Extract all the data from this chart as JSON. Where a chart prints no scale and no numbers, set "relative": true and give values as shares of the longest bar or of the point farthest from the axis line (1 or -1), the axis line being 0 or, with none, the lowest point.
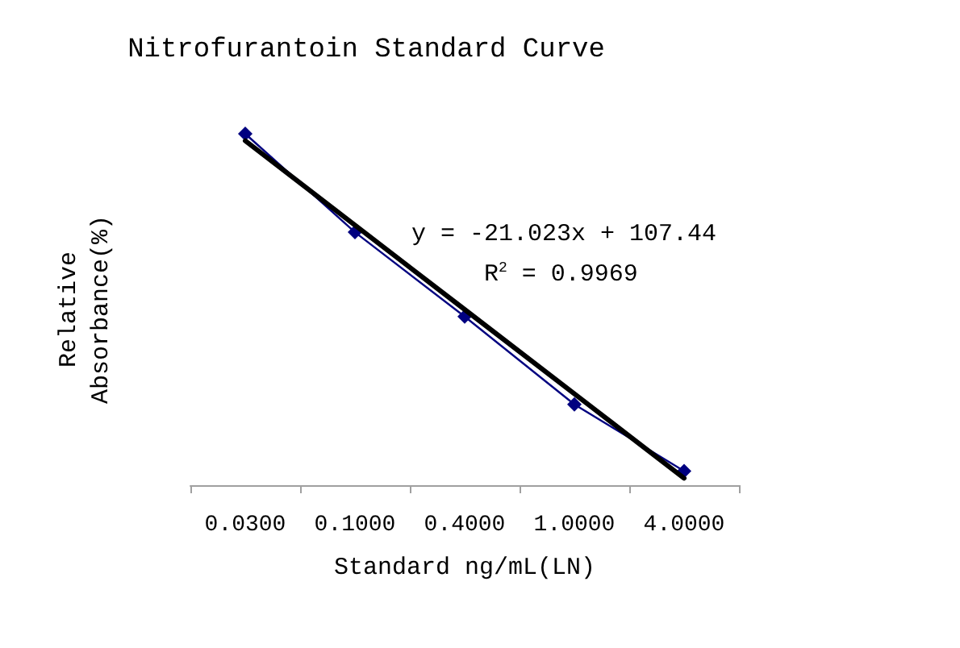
{
  "chart_data": {
    "type": "line",
    "title": "Nitrofurantoin Standard Curve",
    "xlabel": "Standard ng/mL(LN)",
    "ylabel": "Relative\nAbsorbance(%)",
    "relative": true,
    "grid": false,
    "categories": [
      "0.0300",
      "0.1000",
      "0.4000",
      "1.0000",
      "4.0000"
    ],
    "series": [
      {
        "color": "#000080",
        "marker": "diamond",
        "values": [
          1,
          0.72,
          0.48,
          0.23,
          0.04
        ]
      },
      {
        "color": "#000000",
        "marker": "none",
        "values": [
          0.98,
          0.74,
          0.5,
          0.26,
          0.02
        ]
      }
    ],
    "annotations": [
      "y = -21.023x + 107.44",
      "R$^{2}$ = 0.9969"
    ]
  }
}
